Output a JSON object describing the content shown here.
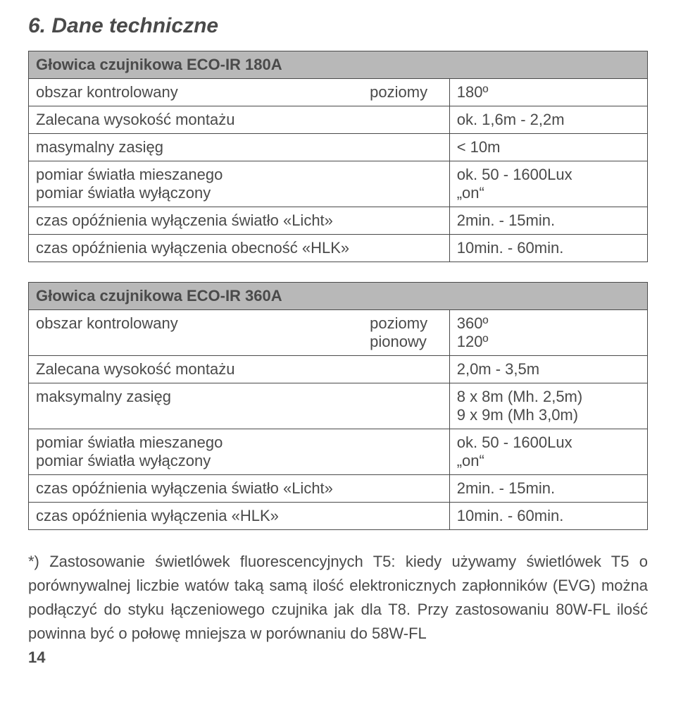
{
  "section_title": "6. Dane techniczne",
  "table1": {
    "header": "Głowica czujnikowa  ECO-IR 180A",
    "rows": [
      {
        "key": "obszar kontrolowany",
        "mid": "poziomy",
        "val": "180º"
      },
      {
        "key": "Zalecana wysokość montażu",
        "mid": "",
        "val": "ok. 1,6m - 2,2m"
      },
      {
        "key": "masymalny zasięg",
        "mid": "",
        "val": "< 10m"
      },
      {
        "key": "pomiar światła mieszanego\npomiar światła wyłączony",
        "mid": "",
        "val": "ok. 50 - 1600Lux\n„on“"
      },
      {
        "key": "czas opóźnienia wyłączenia światło «Licht»",
        "mid": "",
        "val": "2min. - 15min."
      },
      {
        "key": "czas opóźnienia wyłączenia obecność «HLK»",
        "mid": "",
        "val": "10min. - 60min."
      }
    ]
  },
  "table2": {
    "header": "Głowica czujnikowa  ECO-IR 360A",
    "rows": [
      {
        "key": "obszar kontrolowany",
        "mid": "poziomy\npionowy",
        "val": "360º\n120º"
      },
      {
        "key": "Zalecana wysokość montażu",
        "mid": "",
        "val": "2,0m - 3,5m"
      },
      {
        "key": "maksymalny zasięg",
        "mid": "",
        "val": "8 x 8m (Mh. 2,5m)\n9 x 9m (Mh 3,0m)"
      },
      {
        "key": "pomiar światła mieszanego\npomiar światła wyłączony",
        "mid": "",
        "val": "ok. 50 - 1600Lux\n„on“"
      },
      {
        "key": "czas opóźnienia wyłączenia światło «Licht»",
        "mid": "",
        "val": "2min. - 15min."
      },
      {
        "key": "czas opóźnienia wyłączenia  «HLK»",
        "mid": "",
        "val": "10min. - 60min."
      }
    ]
  },
  "footnote": "*) Zastosowanie świetlówek fluorescencyjnych T5: kiedy używamy świetlówek T5 o porównywalnej liczbie watów taką samą ilość elektronicznych zapłonników (EVG) można podłączyć do styku łączeniowego czujnika jak dla T8. Przy zastosowaniu 80W-FL ilość powinna być o połowę mniejsza w porównaniu do 58W-FL",
  "page_number": "14",
  "colors": {
    "text": "#4a4a4a",
    "header_bg": "#b8b8b8",
    "border": "#4a4a4a",
    "background": "#ffffff"
  }
}
